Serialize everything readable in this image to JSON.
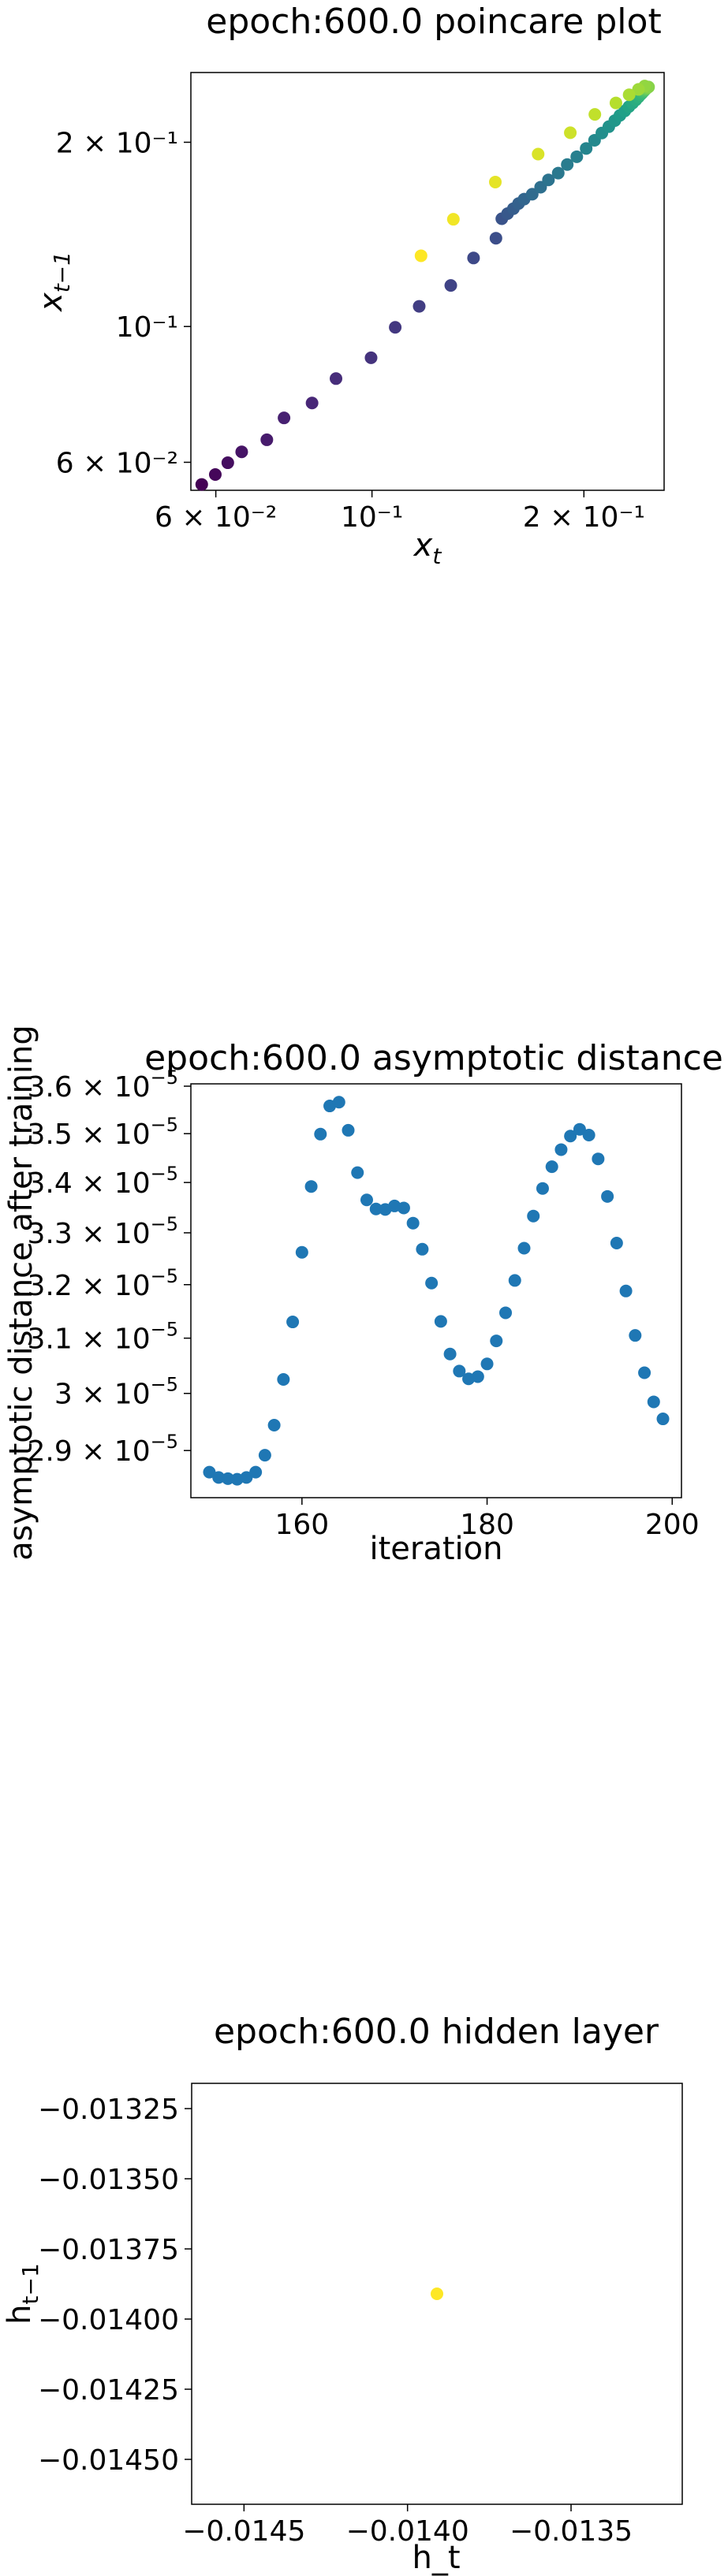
{
  "chart_data": [
    {
      "type": "scatter",
      "title": "epoch:600.0 poincare plot",
      "xlabel_base": "x",
      "xlabel_sub": "t",
      "ylabel_base": "x",
      "ylabel_sub": "t−1",
      "xscale": "log",
      "yscale": "log",
      "xlim": [
        0.0553,
        0.26
      ],
      "ylim": [
        0.054,
        0.26
      ],
      "xticks": [
        {
          "value": 0.06,
          "label": "6 × 10⁻²"
        },
        {
          "value": 0.1,
          "label": "10⁻¹"
        },
        {
          "value": 0.2,
          "label": "2 × 10⁻¹"
        }
      ],
      "yticks": [
        {
          "value": 0.06,
          "label": "6 × 10⁻²"
        },
        {
          "value": 0.1,
          "label": "10⁻¹"
        },
        {
          "value": 0.2,
          "label": "2 × 10⁻¹"
        }
      ],
      "colormap": "viridis",
      "points_x": [
        0.0573,
        0.0599,
        0.0624,
        0.0653,
        0.0709,
        0.075,
        0.0822,
        0.0889,
        0.0997,
        0.1079,
        0.1167,
        0.1294,
        0.1394,
        0.15,
        0.1529,
        0.1558,
        0.1588,
        0.1615,
        0.1645,
        0.1689,
        0.1736,
        0.1781,
        0.1839,
        0.1894,
        0.1954,
        0.2015,
        0.2071,
        0.2121,
        0.217,
        0.2213,
        0.225,
        0.2286,
        0.2317,
        0.2345,
        0.237,
        0.239,
        0.2405,
        0.2418,
        0.2428,
        0.2436,
        0.2442,
        0.2447,
        0.2451,
        0.2456,
        0.2462,
        0.2471,
        0.244,
        0.2391,
        0.2319,
        0.2221,
        0.2073,
        0.1913,
        0.1722,
        0.1497,
        0.1305,
        0.1174
      ],
      "points_y": [
        0.0552,
        0.0573,
        0.0599,
        0.0624,
        0.0653,
        0.0709,
        0.075,
        0.0822,
        0.0889,
        0.0997,
        0.1079,
        0.1167,
        0.1294,
        0.1394,
        0.15,
        0.1529,
        0.1558,
        0.1588,
        0.1615,
        0.1645,
        0.1689,
        0.1736,
        0.1781,
        0.1839,
        0.1894,
        0.1954,
        0.2015,
        0.2071,
        0.2121,
        0.217,
        0.2213,
        0.225,
        0.2286,
        0.2317,
        0.2345,
        0.237,
        0.239,
        0.2405,
        0.2418,
        0.2428,
        0.2436,
        0.2442,
        0.2447,
        0.2451,
        0.2456,
        0.2462,
        0.2471,
        0.244,
        0.2391,
        0.2319,
        0.2221,
        0.2073,
        0.1913,
        0.1722,
        0.1497,
        0.1305
      ]
    },
    {
      "type": "scatter",
      "title": "epoch:600.0 asymptotic distance",
      "xlabel": "iteration",
      "ylabel": "asymptotic distance after training",
      "xlim": [
        148,
        201
      ],
      "ylim": [
        2.82e-05,
        3.605e-05
      ],
      "yscale": "log",
      "xticks": [
        {
          "value": 160,
          "label": "160"
        },
        {
          "value": 180,
          "label": "180"
        },
        {
          "value": 200,
          "label": "200"
        }
      ],
      "yticks": [
        {
          "value": 2.9e-05,
          "mantissa": "2.9",
          "base": "10",
          "exp": "−5"
        },
        {
          "value": 3e-05,
          "mantissa": "3",
          "base": "10",
          "exp": "−5"
        },
        {
          "value": 3.1e-05,
          "mantissa": "3.1",
          "base": "10",
          "exp": "−5"
        },
        {
          "value": 3.2e-05,
          "mantissa": "3.2",
          "base": "10",
          "exp": "−5"
        },
        {
          "value": 3.3e-05,
          "mantissa": "3.3",
          "base": "10",
          "exp": "−5"
        },
        {
          "value": 3.4e-05,
          "mantissa": "3.4",
          "base": "10",
          "exp": "−5"
        },
        {
          "value": 3.5e-05,
          "mantissa": "3.5",
          "base": "10",
          "exp": "−5"
        },
        {
          "value": 3.6e-05,
          "mantissa": "3.6",
          "base": "10",
          "exp": "−5"
        }
      ],
      "color": "#1f77b4",
      "x": [
        150,
        151,
        152,
        153,
        154,
        155,
        156,
        157,
        158,
        159,
        160,
        161,
        162,
        163,
        164,
        165,
        166,
        167,
        168,
        169,
        170,
        171,
        172,
        173,
        174,
        175,
        176,
        177,
        178,
        179,
        180,
        181,
        182,
        183,
        184,
        185,
        186,
        187,
        188,
        189,
        190,
        191,
        192,
        193,
        194,
        195,
        196,
        197,
        198,
        199
      ],
      "y": [
        2.863e-05,
        2.854e-05,
        2.852e-05,
        2.851e-05,
        2.854e-05,
        2.863e-05,
        2.892e-05,
        2.944e-05,
        3.025e-05,
        3.13e-05,
        3.262e-05,
        3.392e-05,
        3.499e-05,
        3.558e-05,
        3.566e-05,
        3.507e-05,
        3.42e-05,
        3.365e-05,
        3.347e-05,
        3.346e-05,
        3.353e-05,
        3.349e-05,
        3.319e-05,
        3.268e-05,
        3.203e-05,
        3.131e-05,
        3.071e-05,
        3.04e-05,
        3.026e-05,
        3.03e-05,
        3.053e-05,
        3.095e-05,
        3.147e-05,
        3.208e-05,
        3.27e-05,
        3.333e-05,
        3.388e-05,
        3.432e-05,
        3.467e-05,
        3.495e-05,
        3.509e-05,
        3.497e-05,
        3.448e-05,
        3.372e-05,
        3.28e-05,
        3.188e-05,
        3.105e-05,
        3.037e-05,
        2.985e-05,
        2.955e-05
      ]
    },
    {
      "type": "scatter",
      "title": "epoch:600.0 hidden layer",
      "xlabel": "h_t",
      "ylabel_base": "h",
      "ylabel_sub": "t−1",
      "xlim": [
        -0.01466,
        -0.01316
      ],
      "ylim": [
        -0.01466,
        -0.01316
      ],
      "xticks": [
        {
          "value": -0.0145,
          "label": "−0.0145"
        },
        {
          "value": -0.014,
          "label": "−0.0140"
        },
        {
          "value": -0.0135,
          "label": "−0.0135"
        }
      ],
      "yticks": [
        {
          "value": -0.01325,
          "label": "−0.01325"
        },
        {
          "value": -0.0135,
          "label": "−0.01350"
        },
        {
          "value": -0.01375,
          "label": "−0.01375"
        },
        {
          "value": -0.014,
          "label": "−0.01400"
        },
        {
          "value": -0.01425,
          "label": "−0.01425"
        },
        {
          "value": -0.0145,
          "label": "−0.01450"
        }
      ],
      "color": "#fde725",
      "x": [
        -0.01391
      ],
      "y": [
        -0.01391
      ]
    }
  ]
}
